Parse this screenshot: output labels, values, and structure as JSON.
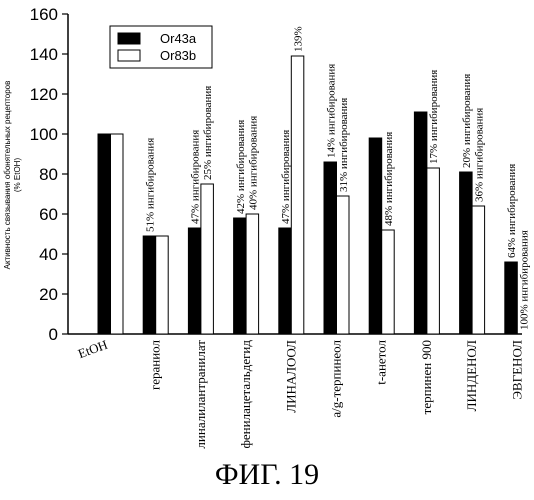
{
  "chart_data": {
    "type": "bar",
    "ylabel": "Активность связывания обонятельных рецепторов",
    "ylabel_unit": "(% EtOH)",
    "ylim": [
      0,
      160
    ],
    "yticks": [
      0,
      20,
      40,
      60,
      80,
      100,
      120,
      140,
      160
    ],
    "categories": [
      "EtOH",
      "гераниол",
      "линалилантранилат",
      "фенилацетальдегид",
      "ЛИНАЛООЛ",
      "a/g-терпинеол",
      "t-анетол",
      "терпинен 900",
      "ЛИНДЕНОЛ",
      "ЭВГЕНОЛ"
    ],
    "series": [
      {
        "name": "Or43a",
        "color": "#000000",
        "values": [
          100,
          49,
          53,
          58,
          53,
          86,
          98,
          111,
          81,
          36
        ],
        "labels": [
          "",
          "51% ингибирования",
          "47% ингибирования",
          "42% ингибирования",
          "47% ингибирования",
          "14% ингибирования",
          "",
          "",
          "20% ингибирования",
          "64% ингибирования"
        ]
      },
      {
        "name": "Or83b",
        "color": "#ffffff",
        "values": [
          100,
          49,
          75,
          60,
          139,
          69,
          52,
          83,
          64,
          0
        ],
        "labels": [
          "",
          "",
          "25% ингибирования",
          "40% ингибирования",
          "139%",
          "31% ингибирования",
          "48% ингибирования",
          "17% ингибирования",
          "36% ингибирования",
          "100% ингибирования"
        ]
      }
    ],
    "legend_position": "top-left",
    "grid": false
  },
  "caption": "ФИГ. 19"
}
